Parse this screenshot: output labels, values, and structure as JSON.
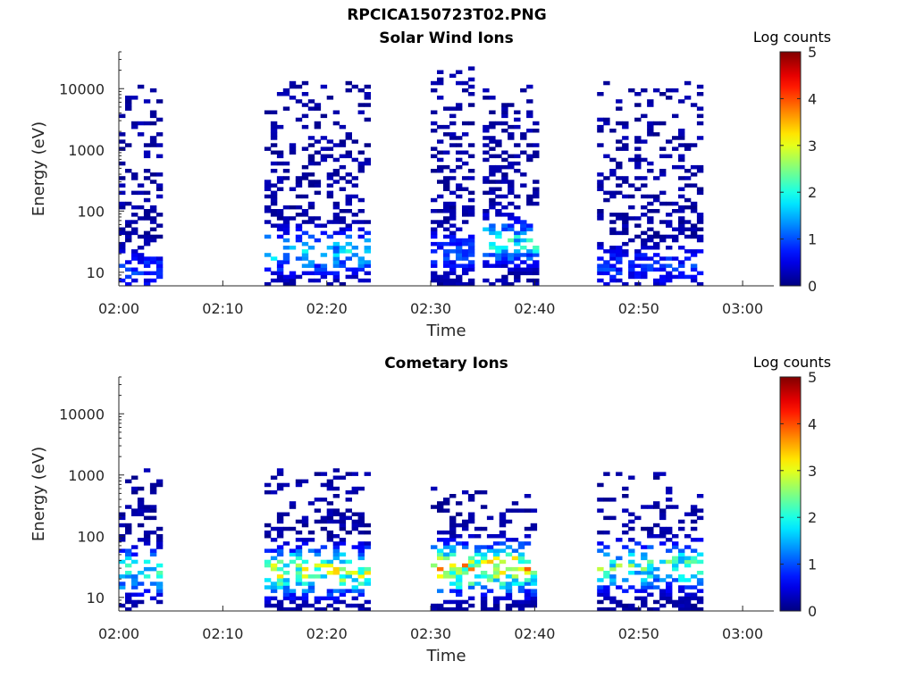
{
  "figure_title": "RPCICA150723T02.PNG",
  "chart_data": [
    {
      "type": "heatmap",
      "title": "Solar Wind Ions",
      "xlabel": "Time",
      "ylabel": "Energy (eV)",
      "x_ticks": [
        "02:00",
        "02:10",
        "02:20",
        "02:30",
        "02:40",
        "02:50",
        "03:00"
      ],
      "x_range": [
        "02:00",
        "03:03"
      ],
      "y_scale": "log",
      "y_ticks": [
        10,
        100,
        1000,
        10000
      ],
      "y_range": [
        6,
        40000
      ],
      "colorbar": {
        "label": "Log counts",
        "range": [
          0,
          5
        ],
        "ticks": [
          0,
          1,
          2,
          3,
          4,
          5
        ],
        "colormap": "jet"
      },
      "clusters": [
        {
          "t_start": "02:00",
          "t_end": "02:04",
          "e_min": 6,
          "e_max": 12000,
          "peak_log_counts": 1.0,
          "peak_energy": 10,
          "density": 0.45
        },
        {
          "t_start": "02:14",
          "t_end": "02:24",
          "e_min": 6,
          "e_max": 12000,
          "peak_log_counts": 1.9,
          "peak_energy": 20,
          "density": 0.4
        },
        {
          "t_start": "02:30",
          "t_end": "02:34",
          "e_min": 6,
          "e_max": 25000,
          "peak_log_counts": 1.1,
          "peak_energy": 20,
          "density": 0.5
        },
        {
          "t_start": "02:35",
          "t_end": "02:40",
          "e_min": 6,
          "e_max": 12000,
          "peak_log_counts": 2.2,
          "peak_energy": 30,
          "density": 0.5
        },
        {
          "t_start": "02:46",
          "t_end": "02:56",
          "e_min": 6,
          "e_max": 12000,
          "peak_log_counts": 1.0,
          "peak_energy": 12,
          "density": 0.4
        }
      ],
      "grid": false
    },
    {
      "type": "heatmap",
      "title": "Cometary Ions",
      "xlabel": "Time",
      "ylabel": "Energy (eV)",
      "x_ticks": [
        "02:00",
        "02:10",
        "02:20",
        "02:30",
        "02:40",
        "02:50",
        "03:00"
      ],
      "x_range": [
        "02:00",
        "03:03"
      ],
      "y_scale": "log",
      "y_ticks": [
        10,
        100,
        1000,
        10000
      ],
      "y_range": [
        6,
        40000
      ],
      "colorbar": {
        "label": "Log counts",
        "range": [
          0,
          5
        ],
        "ticks": [
          0,
          1,
          2,
          3,
          4,
          5
        ],
        "colormap": "jet"
      },
      "clusters": [
        {
          "t_start": "02:00",
          "t_end": "02:04",
          "e_min": 6,
          "e_max": 1200,
          "peak_log_counts": 2.3,
          "peak_energy": 25,
          "density": 0.45
        },
        {
          "t_start": "02:14",
          "t_end": "02:24",
          "e_min": 6,
          "e_max": 1200,
          "peak_log_counts": 3.1,
          "peak_energy": 25,
          "density": 0.45
        },
        {
          "t_start": "02:30",
          "t_end": "02:40",
          "e_min": 6,
          "e_max": 600,
          "peak_log_counts": 3.8,
          "peak_energy": 28,
          "density": 0.45
        },
        {
          "t_start": "02:46",
          "t_end": "02:56",
          "e_min": 6,
          "e_max": 1000,
          "peak_log_counts": 2.6,
          "peak_energy": 30,
          "density": 0.45
        }
      ],
      "grid": false
    }
  ]
}
